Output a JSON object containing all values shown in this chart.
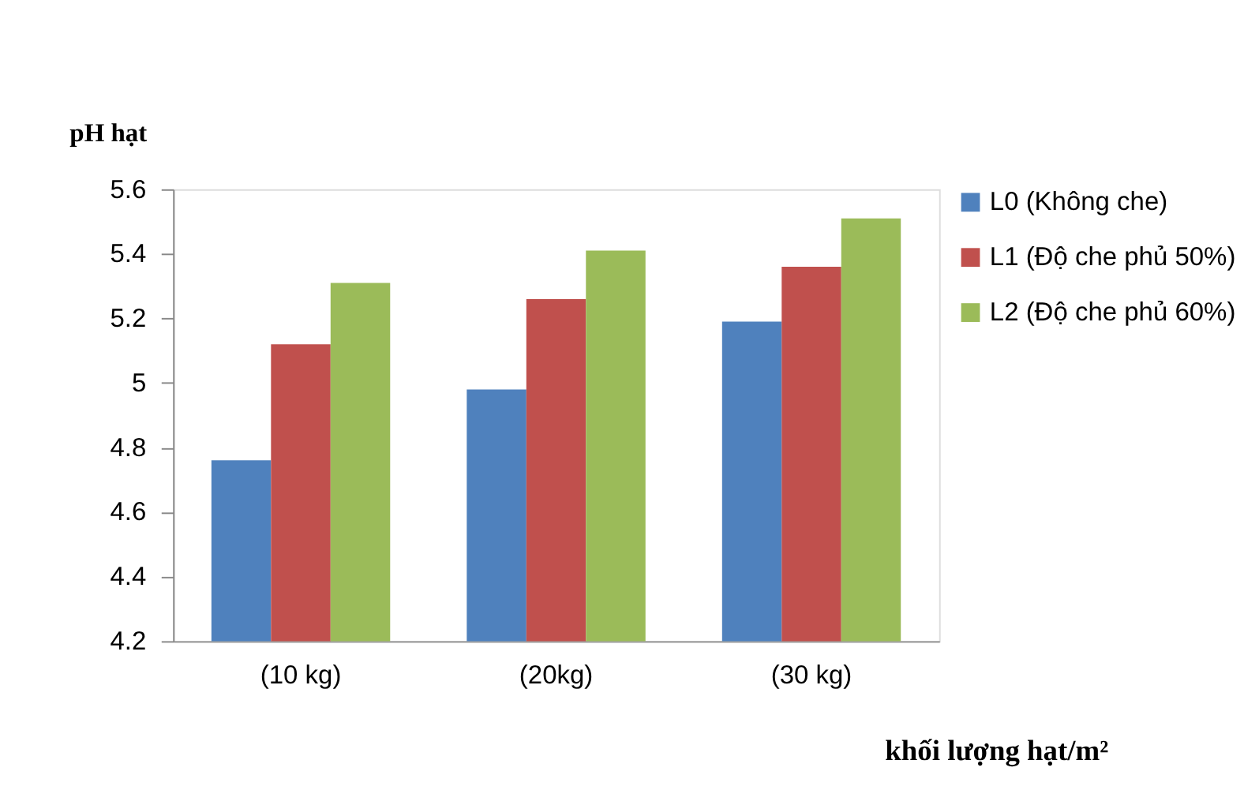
{
  "chart_data": {
    "type": "bar",
    "ylabel": "pH hạt",
    "xlabel": "khối lượng hạt/m²",
    "categories": [
      "(10 kg)",
      "(20kg)",
      "(30 kg)"
    ],
    "series": [
      {
        "name": "L0  (Không che)",
        "color": "#4f81bd",
        "values": [
          4.76,
          4.98,
          5.19
        ]
      },
      {
        "name": "L1 (Độ che phủ 50%)",
        "color": "#c0504d",
        "values": [
          5.12,
          5.26,
          5.36
        ]
      },
      {
        "name": "L2 (Độ che phủ 60%)",
        "color": "#9bbb59",
        "values": [
          5.31,
          5.41,
          5.51
        ]
      }
    ],
    "ylim": [
      4.2,
      5.6
    ],
    "yticks": [
      4.2,
      4.4,
      4.6,
      4.8,
      5,
      5.2,
      5.4,
      5.6
    ],
    "grid": false,
    "legend": "right"
  }
}
